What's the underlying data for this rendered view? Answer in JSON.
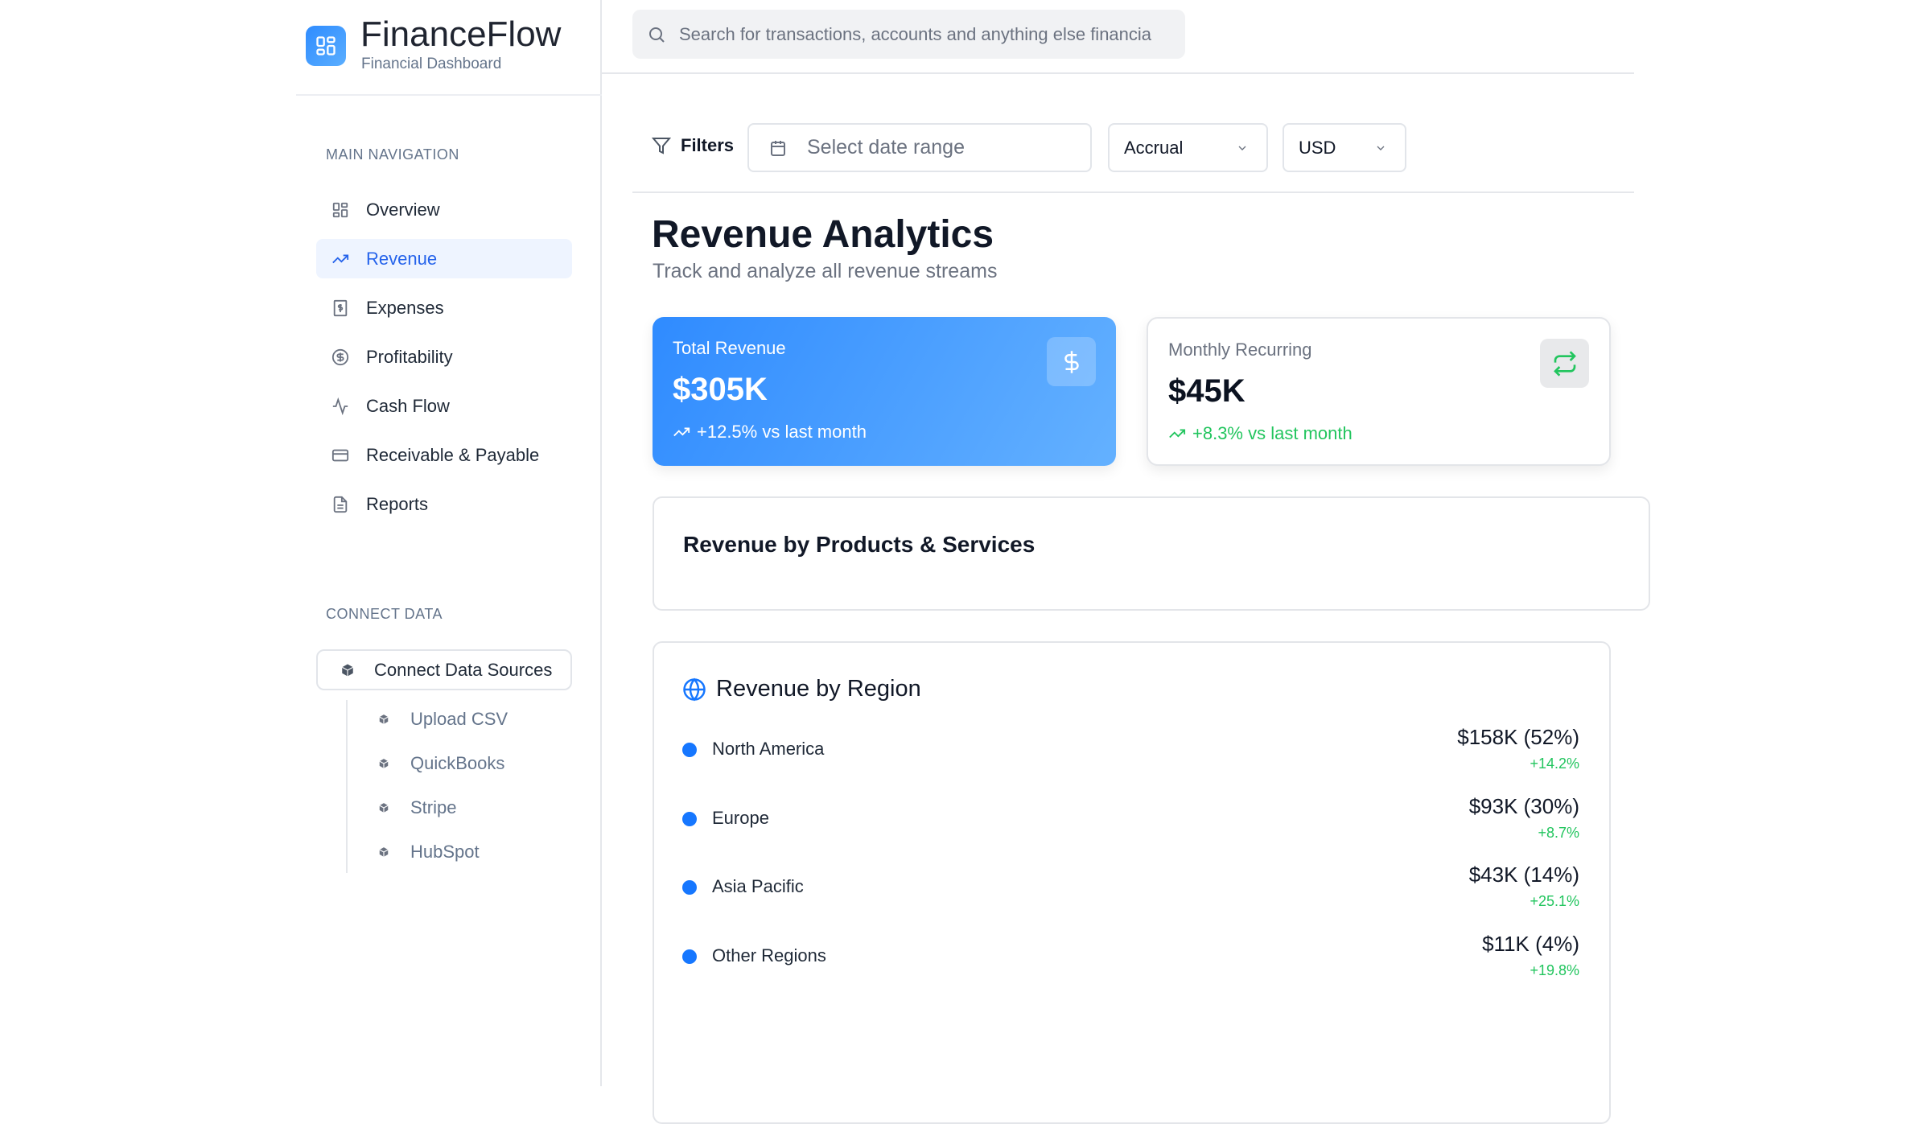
{
  "brand": {
    "name": "FinanceFlow",
    "subtitle": "Financial Dashboard"
  },
  "sidebar": {
    "main_heading": "MAIN NAVIGATION",
    "items": [
      {
        "label": "Overview",
        "icon": "grid-icon"
      },
      {
        "label": "Revenue",
        "icon": "trending-up-icon",
        "active": true
      },
      {
        "label": "Expenses",
        "icon": "receipt-icon"
      },
      {
        "label": "Profitability",
        "icon": "dollar-circle-icon"
      },
      {
        "label": "Cash Flow",
        "icon": "activity-icon"
      },
      {
        "label": "Receivable & Payable",
        "icon": "credit-card-icon"
      },
      {
        "label": "Reports",
        "icon": "file-text-icon"
      }
    ],
    "connect_heading": "CONNECT DATA",
    "connect_button": "Connect Data Sources",
    "sources": [
      "Upload CSV",
      "QuickBooks",
      "Stripe",
      "HubSpot"
    ]
  },
  "search": {
    "placeholder": "Search for transactions, accounts and anything else financia"
  },
  "filters": {
    "label": "Filters",
    "date_placeholder": "Select date range",
    "basis": "Accrual",
    "currency": "USD"
  },
  "page": {
    "title": "Revenue Analytics",
    "subtitle": "Track and analyze all revenue streams"
  },
  "cards": [
    {
      "label": "Total Revenue",
      "value": "$305K",
      "trend": "+12.5% vs last month",
      "icon": "dollar-icon"
    },
    {
      "label": "Monthly Recurring",
      "value": "$45K",
      "trend": "+8.3% vs last month",
      "icon": "repeat-icon"
    }
  ],
  "products": {
    "title": "Revenue by Products & Services"
  },
  "regions": {
    "title": "Revenue by Region",
    "items": [
      {
        "name": "North America",
        "amount": "$158K (52%)",
        "change": "+14.2%"
      },
      {
        "name": "Europe",
        "amount": "$93K (30%)",
        "change": "+8.7%"
      },
      {
        "name": "Asia Pacific",
        "amount": "$43K (14%)",
        "change": "+25.1%"
      },
      {
        "name": "Other Regions",
        "amount": "$11K (4%)",
        "change": "+19.8%"
      }
    ]
  },
  "colors": {
    "accent": "#2563eb",
    "positive": "#22c55e",
    "dot": "#1677ff"
  }
}
